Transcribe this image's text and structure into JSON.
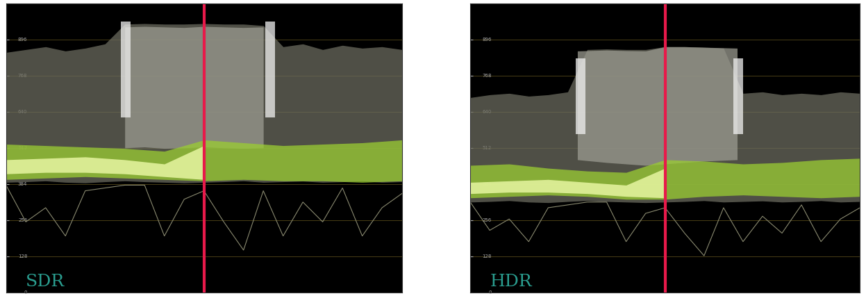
{
  "chart_data": [
    {
      "type": "waveform",
      "annotation": "SDR",
      "xlim": [
        0,
        20
      ],
      "ylim": [
        0,
        1023
      ],
      "yticks": [
        0,
        128,
        256,
        384,
        512,
        640,
        768,
        896
      ],
      "tick_labels": "y",
      "grid": true,
      "divider_x": 10,
      "divider_color": "#e8194a",
      "annotation_color": "#2a9d8f",
      "bands": [
        {
          "color": "#6b6b5e",
          "x": [
            0,
            1,
            2,
            3,
            4,
            5,
            6,
            7,
            8,
            9,
            10,
            11,
            12,
            13,
            14,
            15,
            16,
            17,
            18,
            19,
            20
          ],
          "lower": [
            390,
            392,
            395,
            390,
            388,
            392,
            395,
            392,
            390,
            388,
            390,
            392,
            395,
            390,
            392,
            394,
            390,
            392,
            395,
            390,
            392
          ],
          "upper": [
            850,
            860,
            870,
            855,
            865,
            880,
            950,
            952,
            950,
            950,
            952,
            950,
            950,
            945,
            870,
            880,
            860,
            875,
            865,
            870,
            860
          ]
        },
        {
          "color": "#9a9a90",
          "x": [
            6,
            7,
            8,
            9,
            10,
            11,
            12,
            13
          ],
          "lower": [
            512,
            515,
            510,
            512,
            515,
            512,
            510,
            512
          ],
          "upper": [
            940,
            942,
            940,
            938,
            942,
            940,
            938,
            940
          ]
        },
        {
          "color": "#f0f0f0",
          "x": [
            5.8,
            6.3
          ],
          "lower": [
            620,
            620
          ],
          "upper": [
            960,
            960
          ]
        },
        {
          "color": "#f0f0f0",
          "x": [
            13.1,
            13.6
          ],
          "lower": [
            620,
            620
          ],
          "upper": [
            960,
            960
          ]
        },
        {
          "color": "#9acd32",
          "x": [
            0,
            2,
            4,
            6,
            8,
            10,
            12,
            14,
            16,
            18,
            20
          ],
          "lower": [
            400,
            405,
            410,
            405,
            400,
            395,
            400,
            395,
            395,
            390,
            395
          ],
          "upper": [
            525,
            520,
            515,
            510,
            500,
            540,
            530,
            520,
            525,
            530,
            540
          ]
        },
        {
          "color": "#f4ffb0",
          "x": [
            0,
            2,
            4,
            6,
            8,
            10
          ],
          "lower": [
            420,
            425,
            425,
            420,
            410,
            400
          ],
          "upper": [
            470,
            475,
            480,
            470,
            455,
            520
          ]
        }
      ],
      "trace": {
        "color": "#8a8a70",
        "x": [
          0,
          1,
          2,
          3,
          4,
          5,
          6,
          7,
          8,
          9,
          10,
          11,
          12,
          13,
          14,
          15,
          16,
          17,
          18,
          19,
          20
        ],
        "values": [
          380,
          250,
          300,
          200,
          360,
          370,
          380,
          380,
          200,
          330,
          360,
          250,
          150,
          360,
          200,
          320,
          250,
          370,
          200,
          300,
          350
        ]
      }
    },
    {
      "type": "waveform",
      "annotation": "HDR",
      "xlim": [
        0,
        20
      ],
      "ylim": [
        0,
        1023
      ],
      "yticks": [
        0,
        128,
        256,
        384,
        512,
        640,
        768,
        896
      ],
      "tick_labels": "y",
      "grid": true,
      "divider_x": 10,
      "divider_color": "#e8194a",
      "annotation_color": "#2a9d8f",
      "bands": [
        {
          "color": "#6b6b5e",
          "x": [
            0,
            1,
            2,
            3,
            4,
            5,
            6,
            7,
            8,
            9,
            10,
            11,
            12,
            13,
            14,
            15,
            16,
            17,
            18,
            19,
            20
          ],
          "lower": [
            320,
            322,
            325,
            320,
            318,
            322,
            325,
            322,
            320,
            318,
            320,
            322,
            325,
            320,
            322,
            324,
            320,
            322,
            325,
            320,
            322
          ],
          "upper": [
            690,
            700,
            705,
            695,
            700,
            710,
            860,
            862,
            860,
            860,
            870,
            870,
            868,
            865,
            705,
            710,
            700,
            705,
            700,
            710,
            705
          ]
        },
        {
          "color": "#9a9a90",
          "x": [
            5.5,
            7,
            8,
            9,
            10,
            11,
            12,
            13.7
          ],
          "lower": [
            470,
            460,
            455,
            450,
            455,
            460,
            465,
            470
          ],
          "upper": [
            855,
            858,
            856,
            855,
            870,
            870,
            868,
            865
          ]
        },
        {
          "color": "#f0f0f0",
          "x": [
            5.4,
            5.9
          ],
          "lower": [
            560,
            560
          ],
          "upper": [
            830,
            830
          ]
        },
        {
          "color": "#f0f0f0",
          "x": [
            13.5,
            14.0
          ],
          "lower": [
            560,
            560
          ],
          "upper": [
            830,
            830
          ]
        },
        {
          "color": "#9acd32",
          "x": [
            0,
            2,
            4,
            6,
            8,
            10,
            12,
            14,
            16,
            18,
            20
          ],
          "lower": [
            335,
            340,
            345,
            340,
            330,
            330,
            340,
            345,
            340,
            335,
            340
          ],
          "upper": [
            450,
            455,
            440,
            430,
            425,
            470,
            465,
            455,
            460,
            470,
            475
          ]
        },
        {
          "color": "#f4ffb0",
          "x": [
            0,
            2,
            4,
            6,
            8,
            10
          ],
          "lower": [
            350,
            355,
            355,
            350,
            340,
            335
          ],
          "upper": [
            390,
            395,
            400,
            390,
            380,
            440
          ]
        }
      ],
      "trace": {
        "color": "#8a8a70",
        "x": [
          0,
          1,
          2,
          3,
          4,
          5,
          6,
          7,
          8,
          9,
          10,
          11,
          12,
          13,
          14,
          15,
          16,
          17,
          18,
          19,
          20
        ],
        "values": [
          320,
          220,
          260,
          180,
          300,
          310,
          320,
          320,
          180,
          280,
          300,
          210,
          130,
          300,
          180,
          270,
          210,
          310,
          180,
          260,
          300
        ]
      }
    }
  ]
}
